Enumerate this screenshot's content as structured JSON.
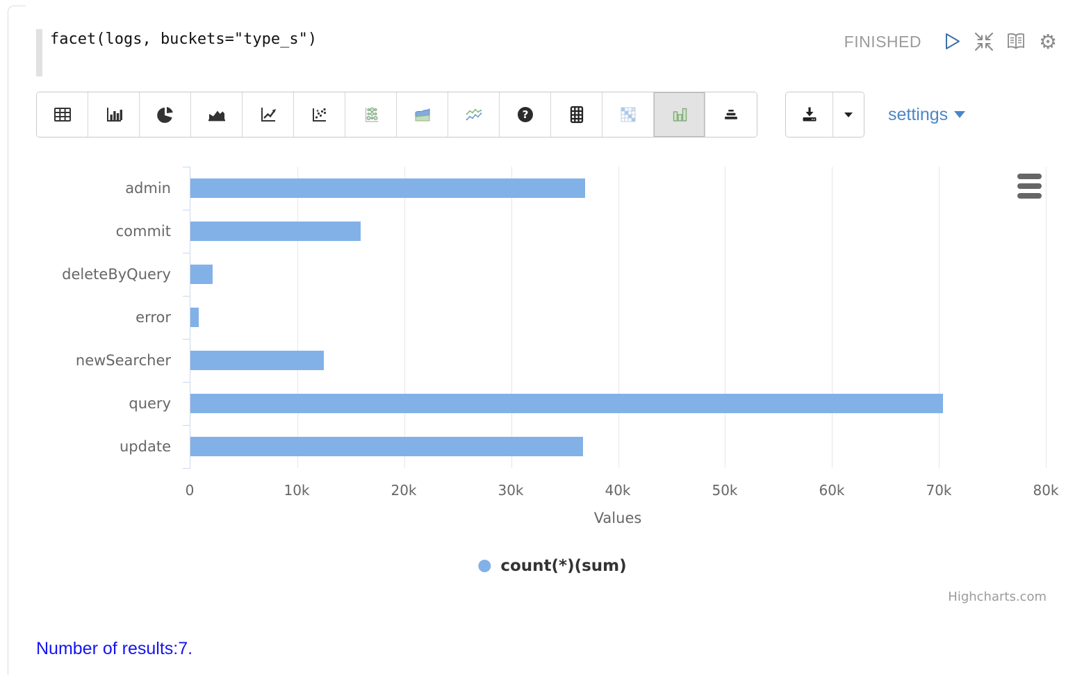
{
  "paragraph": {
    "query": "facet(logs, buckets=\"type_s\")",
    "status": "FINISHED"
  },
  "toolbar": {
    "chart_buttons": [
      "table",
      "bar-chart",
      "pie-chart",
      "area-chart",
      "line-chart",
      "scatter-chart",
      "bubble-chart",
      "stacked-area-chart",
      "multi-line-chart",
      "help",
      "pivot-table",
      "heatmap",
      "grouped-bar-chart",
      "pyramid-chart"
    ],
    "selected_button": "grouped-bar-chart",
    "settings_label": "settings"
  },
  "chart_data": {
    "type": "bar",
    "orientation": "horizontal",
    "categories": [
      "admin",
      "commit",
      "deleteByQuery",
      "error",
      "newSearcher",
      "query",
      "update"
    ],
    "values": [
      36900,
      15900,
      2100,
      780,
      12500,
      70400,
      36700
    ],
    "series_name": "count(*)(sum)",
    "xlabel": "Values",
    "xlim": [
      0,
      80000
    ],
    "tick_values": [
      0,
      10000,
      20000,
      30000,
      40000,
      50000,
      60000,
      70000,
      80000
    ],
    "tick_labels": [
      "0",
      "10k",
      "20k",
      "30k",
      "40k",
      "50k",
      "60k",
      "70k",
      "80k"
    ],
    "grid": true,
    "legend_position": "bottom",
    "bar_color": "#82b1e8",
    "credits": "Highcharts.com"
  },
  "footer": {
    "results_text": "Number of results:7."
  },
  "colors": {
    "bar": "#82b1e8",
    "axis_line": "#ccd6eb",
    "gridline": "#e7e7e7",
    "label_gray": "#666666",
    "status_gray": "#9b9b9b",
    "link_blue": "#4a86c8",
    "play_blue": "#3d6fa8",
    "results_blue": "#1414f0"
  }
}
